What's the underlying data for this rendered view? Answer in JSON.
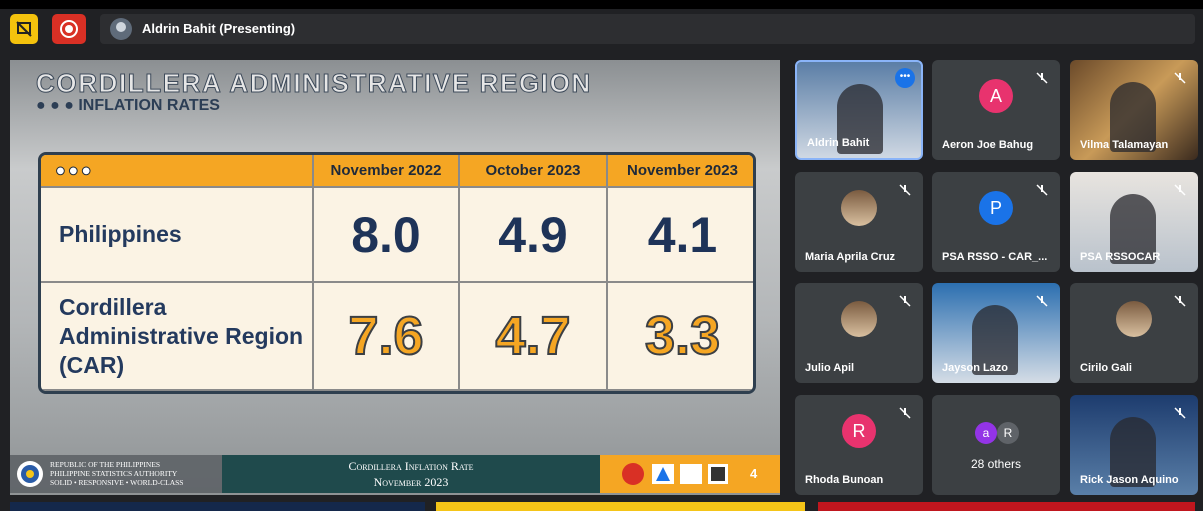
{
  "toolbar": {
    "presenter": "Aldrin Bahit (Presenting)"
  },
  "slide": {
    "title": "CORDILLERA ADMINISTRATIVE REGION",
    "subtitle": "INFLATION RATES",
    "table": {
      "header": [
        "November 2022",
        "October 2023",
        "November 2023"
      ],
      "rows": [
        {
          "label": "Philippines",
          "values": [
            "8.0",
            "4.9",
            "4.1"
          ]
        },
        {
          "label": "Cordillera Administrative Region (CAR)",
          "values": [
            "7.6",
            "4.7",
            "3.3"
          ]
        }
      ]
    },
    "footer": {
      "agency": [
        "Republic of the Philippines",
        "Philippine Statistics Authority",
        "Solid • Responsive • World-Class"
      ],
      "caption": [
        "Cordillera Inflation Rate",
        "November 2023"
      ],
      "page": "4"
    }
  },
  "participants": [
    {
      "name": "Aldrin Bahit",
      "kind": "video"
    },
    {
      "name": "Aeron Joe Bahug",
      "kind": "avatar",
      "initial": "A",
      "color": "#e8336e"
    },
    {
      "name": "Vilma Talamayan",
      "kind": "video"
    },
    {
      "name": "Maria Aprila Cruz",
      "kind": "photo"
    },
    {
      "name": "PSA RSSO - CAR_...",
      "kind": "avatar",
      "initial": "P",
      "color": "#1a73e8"
    },
    {
      "name": "PSA RSSOCAR",
      "kind": "video"
    },
    {
      "name": "Julio Apil",
      "kind": "photo"
    },
    {
      "name": "Jayson Lazo",
      "kind": "video"
    },
    {
      "name": "Cirilo Gali",
      "kind": "photo"
    },
    {
      "name": "Rhoda Bunoan",
      "kind": "avatar",
      "initial": "R",
      "color": "#e8336e"
    },
    {
      "name": "28 others",
      "kind": "others",
      "initials": [
        "a",
        "R"
      ]
    },
    {
      "name": "Rick Jason Aquino",
      "kind": "video"
    }
  ]
}
